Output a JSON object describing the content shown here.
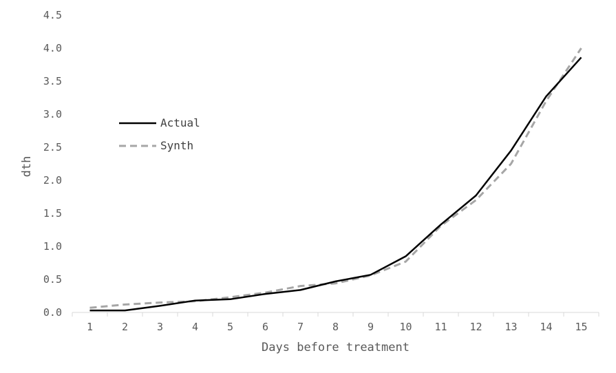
{
  "chart_data": {
    "type": "line",
    "title": "",
    "xlabel": "Days before treatment",
    "ylabel": "dth",
    "x": [
      1,
      2,
      3,
      4,
      5,
      6,
      7,
      8,
      9,
      10,
      11,
      12,
      13,
      14,
      15
    ],
    "ylim": [
      0,
      4.5
    ],
    "yticks": [
      "0.0",
      "0.5",
      "1.0",
      "1.5",
      "2.0",
      "2.5",
      "3.0",
      "3.5",
      "4.0",
      "4.5"
    ],
    "grid": false,
    "legend_position": "upper-left",
    "series": [
      {
        "name": "Actual",
        "style": "solid",
        "color": "#000000",
        "values": [
          0.03,
          0.03,
          0.1,
          0.18,
          0.2,
          0.28,
          0.34,
          0.47,
          0.57,
          0.85,
          1.33,
          1.77,
          2.45,
          3.27,
          3.86
        ]
      },
      {
        "name": "Synth",
        "style": "dashed",
        "color": "#a6a6a6",
        "values": [
          0.07,
          0.12,
          0.15,
          0.17,
          0.23,
          0.3,
          0.4,
          0.44,
          0.56,
          0.77,
          1.31,
          1.7,
          2.25,
          3.2,
          4.0
        ]
      }
    ]
  }
}
